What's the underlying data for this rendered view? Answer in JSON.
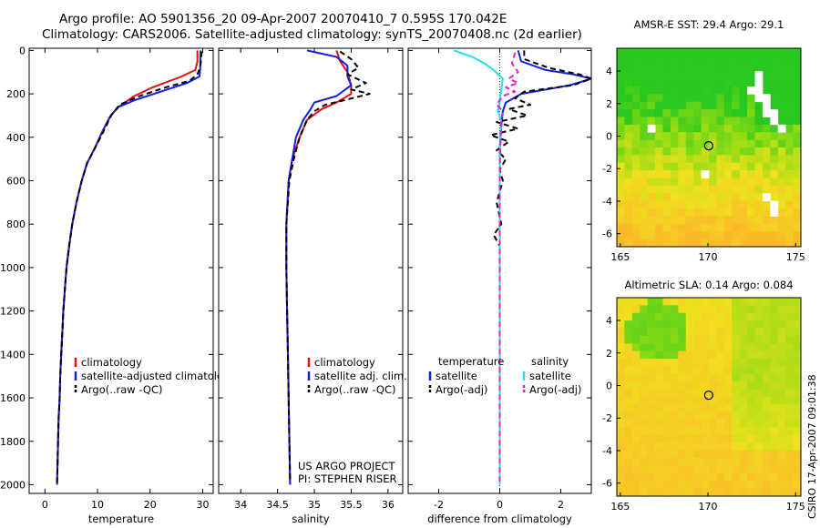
{
  "header": {
    "line1": "Argo profile: AO 5901356_20 09-Apr-2007 20070410_7 0.595S 170.042E",
    "line2": "Climatology: CARS2006. Satellite-adjusted climatology: synTS_20070408.nc (2d earlier)"
  },
  "side_label": "CSIRO 17-Apr-2007 09:01:38",
  "colors": {
    "red": "#e01010",
    "blue": "#1020e0",
    "black": "#000000",
    "cyan": "#20e0e8",
    "magenta": "#e020d0"
  },
  "chart_data": [
    {
      "type": "line",
      "name": "temperature-profile",
      "xlabel": "temperature",
      "xlim": [
        -3,
        32
      ],
      "ylim": [
        2040,
        -10
      ],
      "xticks": [
        0,
        10,
        20,
        30
      ],
      "yticks": [
        0,
        200,
        400,
        600,
        800,
        1000,
        1200,
        1400,
        1600,
        1800,
        2000
      ],
      "legend": [
        {
          "label": "climatology",
          "color": "#e01010",
          "dash": false
        },
        {
          "label": "satellite-adjusted climatology",
          "color": "#1020e0",
          "dash": false
        },
        {
          "label": "Argo(..raw -QC)",
          "color": "#000000",
          "dash": true
        }
      ],
      "series": [
        {
          "name": "climatology",
          "color": "#e01010",
          "dash": false,
          "points": [
            [
              29.0,
              0
            ],
            [
              29.0,
              50
            ],
            [
              28.6,
              90
            ],
            [
              26,
              120
            ],
            [
              20.5,
              170
            ],
            [
              17,
              210
            ],
            [
              14,
              260
            ],
            [
              12.5,
              300
            ],
            [
              11,
              370
            ],
            [
              9.5,
              450
            ],
            [
              8,
              520
            ],
            [
              7,
              600
            ],
            [
              6,
              700
            ],
            [
              5.2,
              800
            ],
            [
              4.6,
              900
            ],
            [
              4.1,
              1000
            ],
            [
              3.8,
              1100
            ],
            [
              3.5,
              1200
            ],
            [
              3.3,
              1300
            ],
            [
              3.1,
              1400
            ],
            [
              2.9,
              1500
            ],
            [
              2.8,
              1600
            ],
            [
              2.6,
              1700
            ],
            [
              2.5,
              1800
            ],
            [
              2.4,
              1900
            ],
            [
              2.3,
              2000
            ]
          ]
        },
        {
          "name": "satellite-adjusted",
          "color": "#1020e0",
          "dash": false,
          "points": [
            [
              29.6,
              0
            ],
            [
              29.6,
              60
            ],
            [
              29.4,
              120
            ],
            [
              27,
              150
            ],
            [
              22,
              190
            ],
            [
              17,
              230
            ],
            [
              14,
              260
            ],
            [
              12.5,
              300
            ],
            [
              11,
              370
            ],
            [
              9.5,
              450
            ],
            [
              8,
              520
            ],
            [
              7,
              600
            ],
            [
              6,
              700
            ],
            [
              5.2,
              800
            ],
            [
              4.6,
              900
            ],
            [
              4.1,
              1000
            ],
            [
              3.8,
              1100
            ],
            [
              3.5,
              1200
            ],
            [
              3.3,
              1300
            ],
            [
              3.1,
              1400
            ],
            [
              2.9,
              1500
            ],
            [
              2.8,
              1600
            ],
            [
              2.6,
              1700
            ],
            [
              2.5,
              1800
            ],
            [
              2.4,
              1900
            ],
            [
              2.3,
              2000
            ]
          ]
        },
        {
          "name": "argo",
          "color": "#000000",
          "dash": true,
          "points": [
            [
              29.8,
              5
            ],
            [
              29.7,
              40
            ],
            [
              29.5,
              80
            ],
            [
              29.0,
              110
            ],
            [
              27.5,
              140
            ],
            [
              23,
              170
            ],
            [
              18,
              210
            ],
            [
              14.2,
              250
            ],
            [
              12.6,
              300
            ],
            [
              11.2,
              370
            ],
            [
              9.5,
              450
            ],
            [
              8,
              520
            ],
            [
              7,
              600
            ],
            [
              6,
              700
            ],
            [
              5.2,
              800
            ],
            [
              4.6,
              900
            ],
            [
              4.1,
              1000
            ],
            [
              3.8,
              1100
            ],
            [
              3.5,
              1200
            ],
            [
              3.3,
              1300
            ],
            [
              3.1,
              1400
            ],
            [
              2.9,
              1500
            ],
            [
              2.8,
              1600
            ],
            [
              2.6,
              1700
            ],
            [
              2.5,
              1800
            ],
            [
              2.4,
              1900
            ],
            [
              2.3,
              1990
            ]
          ]
        }
      ]
    },
    {
      "type": "line",
      "name": "salinity-profile",
      "xlabel": "salinity",
      "xlim": [
        33.7,
        36.2
      ],
      "ylim": [
        2040,
        -10
      ],
      "xticks": [
        34,
        34.5,
        35,
        35.5,
        36
      ],
      "legend": [
        {
          "label": "climatology",
          "color": "#e01010",
          "dash": false
        },
        {
          "label": "satellite adj. clim.",
          "color": "#1020e0",
          "dash": false
        },
        {
          "label": "Argo(..raw -QC)",
          "color": "#000000",
          "dash": true
        }
      ],
      "annotation": [
        "US ARGO PROJECT",
        "PI: STEPHEN RISER"
      ],
      "series": [
        {
          "name": "climatology",
          "color": "#e01010",
          "dash": false,
          "points": [
            [
              35.3,
              0
            ],
            [
              35.35,
              50
            ],
            [
              35.45,
              100
            ],
            [
              35.5,
              160
            ],
            [
              35.5,
              200
            ],
            [
              35.3,
              240
            ],
            [
              35.1,
              270
            ],
            [
              34.9,
              320
            ],
            [
              34.8,
              400
            ],
            [
              34.7,
              500
            ],
            [
              34.65,
              600
            ],
            [
              34.62,
              800
            ],
            [
              34.62,
              1000
            ],
            [
              34.63,
              1200
            ],
            [
              34.64,
              1400
            ],
            [
              34.65,
              1600
            ],
            [
              34.66,
              1800
            ],
            [
              34.67,
              2000
            ]
          ]
        },
        {
          "name": "satellite-adjusted",
          "color": "#1020e0",
          "dash": false,
          "points": [
            [
              34.9,
              0
            ],
            [
              35.3,
              30
            ],
            [
              35.45,
              70
            ],
            [
              35.45,
              120
            ],
            [
              35.5,
              160
            ],
            [
              35.3,
              210
            ],
            [
              35.0,
              240
            ],
            [
              34.95,
              270
            ],
            [
              34.85,
              320
            ],
            [
              34.75,
              400
            ],
            [
              34.7,
              500
            ],
            [
              34.65,
              600
            ],
            [
              34.62,
              800
            ],
            [
              34.62,
              1000
            ],
            [
              34.63,
              1200
            ],
            [
              34.64,
              1400
            ],
            [
              34.65,
              1600
            ],
            [
              34.66,
              1800
            ],
            [
              34.67,
              2000
            ]
          ]
        },
        {
          "name": "argo",
          "color": "#000000",
          "dash": true,
          "points": [
            [
              35.35,
              5
            ],
            [
              35.5,
              40
            ],
            [
              35.6,
              80
            ],
            [
              35.45,
              110
            ],
            [
              35.7,
              150
            ],
            [
              35.5,
              180
            ],
            [
              35.75,
              200
            ],
            [
              35.4,
              230
            ],
            [
              35.15,
              250
            ],
            [
              35.0,
              280
            ],
            [
              34.9,
              320
            ],
            [
              34.8,
              400
            ],
            [
              34.72,
              500
            ],
            [
              34.66,
              600
            ],
            [
              34.62,
              800
            ],
            [
              34.62,
              1000
            ],
            [
              34.63,
              1200
            ],
            [
              34.64,
              1400
            ],
            [
              34.65,
              1600
            ],
            [
              34.66,
              1800
            ],
            [
              34.67,
              1990
            ]
          ]
        }
      ]
    },
    {
      "type": "line",
      "name": "difference-profile",
      "xlabel": "difference from climatology",
      "xlim": [
        -3.0,
        3.0
      ],
      "ylim": [
        2040,
        -10
      ],
      "xticks": [
        -2,
        0,
        2
      ],
      "legend_headers": [
        "temperature",
        "salinity"
      ],
      "legend": [
        {
          "label": "satellite",
          "color": "#1020e0",
          "dash": false,
          "column": 0
        },
        {
          "label": "Argo(-adj)",
          "color": "#000000",
          "dash": true,
          "column": 0
        },
        {
          "label": "satellite",
          "color": "#20e0e8",
          "dash": false,
          "column": 1
        },
        {
          "label": "Argo(-adj)",
          "color": "#e020d0",
          "dash": true,
          "column": 1
        }
      ],
      "series": [
        {
          "name": "temp-satellite",
          "color": "#1020e0",
          "dash": false,
          "points": [
            [
              0.6,
              0
            ],
            [
              0.7,
              50
            ],
            [
              1.5,
              90
            ],
            [
              2.4,
              110
            ],
            [
              3.0,
              130
            ],
            [
              2.3,
              160
            ],
            [
              0.7,
              200
            ],
            [
              0.2,
              240
            ],
            [
              0.1,
              280
            ],
            [
              0.05,
              350
            ],
            [
              0,
              450
            ],
            [
              0,
              800
            ],
            [
              0,
              2000
            ]
          ]
        },
        {
          "name": "temp-argo",
          "color": "#000000",
          "dash": true,
          "points": [
            [
              0.8,
              0
            ],
            [
              0.8,
              40
            ],
            [
              1.6,
              80
            ],
            [
              2.6,
              110
            ],
            [
              3.0,
              130
            ],
            [
              2.4,
              160
            ],
            [
              0.8,
              190
            ],
            [
              0.5,
              220
            ],
            [
              1.0,
              250
            ],
            [
              0.3,
              270
            ],
            [
              0.9,
              300
            ],
            [
              -0.1,
              330
            ],
            [
              0.6,
              360
            ],
            [
              -0.3,
              390
            ],
            [
              0.3,
              420
            ],
            [
              -0.1,
              460
            ],
            [
              0.2,
              500
            ],
            [
              0,
              550
            ],
            [
              0.1,
              600
            ],
            [
              -0.1,
              700
            ],
            [
              0.05,
              800
            ],
            [
              -0.2,
              850
            ],
            [
              0,
              900
            ],
            [
              0,
              1200
            ],
            [
              0,
              1600
            ],
            [
              0,
              2000
            ]
          ]
        },
        {
          "name": "salt-satellite",
          "color": "#20e0e8",
          "dash": false,
          "points": [
            [
              -1.5,
              0
            ],
            [
              -0.9,
              30
            ],
            [
              -0.5,
              60
            ],
            [
              -0.2,
              90
            ],
            [
              0.1,
              130
            ],
            [
              0.05,
              180
            ],
            [
              0,
              230
            ],
            [
              -0.05,
              280
            ],
            [
              0.05,
              330
            ],
            [
              0.02,
              400
            ],
            [
              0,
              500
            ],
            [
              0,
              800
            ],
            [
              0,
              2000
            ]
          ]
        },
        {
          "name": "salt-argo",
          "color": "#e020d0",
          "dash": true,
          "points": [
            [
              0.5,
              10
            ],
            [
              0.4,
              60
            ],
            [
              0.6,
              100
            ],
            [
              0.3,
              130
            ],
            [
              0.6,
              150
            ],
            [
              0.2,
              170
            ],
            [
              0.5,
              190
            ],
            [
              0.1,
              210
            ],
            [
              -0.1,
              250
            ],
            [
              0.1,
              280
            ],
            [
              0.05,
              320
            ],
            [
              0.03,
              400
            ],
            [
              0.01,
              500
            ],
            [
              0,
              600
            ],
            [
              0,
              800
            ],
            [
              0,
              1200
            ],
            [
              0,
              1600
            ],
            [
              0,
              2000
            ]
          ]
        }
      ]
    },
    {
      "type": "heatmap",
      "name": "amsr-e-sst-map",
      "title": "AMSR-E SST: 29.4 Argo: 29.1",
      "xlim": [
        164.8,
        175.3
      ],
      "ylim": [
        -6.8,
        5.4
      ],
      "xticks": [
        165,
        170,
        175
      ],
      "yticks": [
        4,
        2,
        0,
        -2,
        -4,
        -6
      ],
      "marker": {
        "lon": 170.042,
        "lat": -0.595
      },
      "description": "sea surface temperature field, green (warm) north of about 0 deg, yellow-orange south"
    },
    {
      "type": "heatmap",
      "name": "altimetric-sla-map",
      "title": "Altimetric SLA: 0.14 Argo: 0.084",
      "xlim": [
        164.8,
        175.3
      ],
      "ylim": [
        -6.8,
        5.4
      ],
      "xticks": [
        165,
        170,
        175
      ],
      "yticks": [
        4,
        2,
        0,
        -2,
        -4,
        -6
      ],
      "marker": {
        "lon": 170.042,
        "lat": -0.595
      },
      "description": "sea level anomaly field, mostly yellow with green patches north and east"
    }
  ]
}
